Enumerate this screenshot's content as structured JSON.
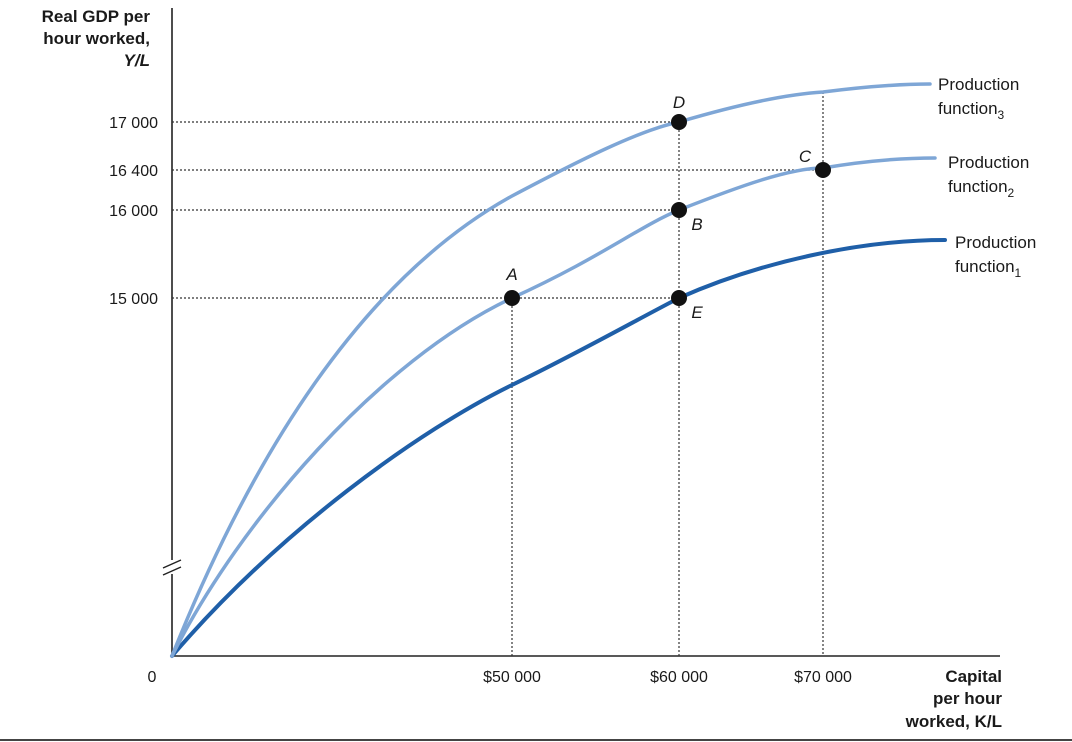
{
  "chart_data": {
    "type": "line",
    "ylabel_lines": [
      "Real GDP per",
      "hour worked,",
      "Y/L"
    ],
    "xlabel_lines": [
      "Capital",
      "per hour",
      "worked, K/L"
    ],
    "origin_label": "0",
    "x_ticks": [
      {
        "value": 50000,
        "label": "$50 000"
      },
      {
        "value": 60000,
        "label": "$60 000"
      },
      {
        "value": 70000,
        "label": "$70 000"
      }
    ],
    "y_ticks": [
      {
        "value": 15000,
        "label": "15 000"
      },
      {
        "value": 16000,
        "label": "16 000"
      },
      {
        "value": 16400,
        "label": "16 400"
      },
      {
        "value": 17000,
        "label": "17 000"
      }
    ],
    "series": [
      {
        "label_main": "Production",
        "label_sub": "function",
        "label_subscript": "1",
        "color": "#1f5fa8"
      },
      {
        "label_main": "Production",
        "label_sub": "function",
        "label_subscript": "2",
        "color": "#7ea6d6"
      },
      {
        "label_main": "Production",
        "label_sub": "function",
        "label_subscript": "3",
        "color": "#7ea6d6"
      }
    ],
    "points": [
      {
        "name": "A",
        "x": 50000,
        "y": 15000,
        "curve": 2
      },
      {
        "name": "B",
        "x": 60000,
        "y": 16000,
        "curve": 2
      },
      {
        "name": "C",
        "x": 70000,
        "y": 16400,
        "curve": 2
      },
      {
        "name": "D",
        "x": 60000,
        "y": 17000,
        "curve": 3
      },
      {
        "name": "E",
        "x": 60000,
        "y": 15000,
        "curve": 1
      }
    ],
    "y_axis_break": true,
    "grid": false
  }
}
